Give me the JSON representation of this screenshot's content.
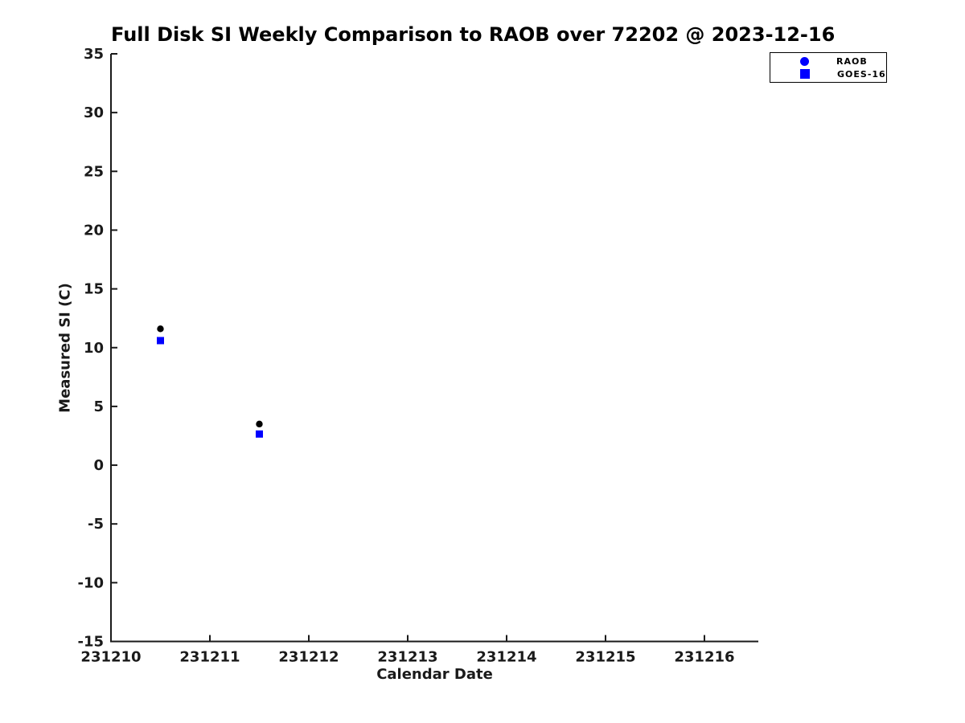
{
  "chart_data": {
    "type": "scatter",
    "title": "Full Disk SI Weekly Comparison to RAOB over 72202 @ 2023-12-16",
    "xlabel": "Calendar Date",
    "ylabel": "Measured SI (C)",
    "xlim": [
      231210,
      231216.545
    ],
    "ylim": [
      -15,
      35
    ],
    "xticks": [
      231210,
      231211,
      231212,
      231213,
      231214,
      231215,
      231216
    ],
    "yticks": [
      35,
      30,
      25,
      20,
      15,
      10,
      5,
      0,
      -5,
      -10,
      -15
    ],
    "grid": false,
    "axis_color": "#1a1a1a",
    "legend": {
      "position": "outside-top-right",
      "border_color": "#000000",
      "background": "#ffffff"
    },
    "series": [
      {
        "name": "RAOB",
        "marker": "circle",
        "color": "#000000",
        "legend_color": "#0000ff",
        "points": [
          {
            "x": 231210.5,
            "y": 11.6
          },
          {
            "x": 231211.5,
            "y": 3.5
          }
        ]
      },
      {
        "name": "GOES-16",
        "marker": "square",
        "color": "#0000ff",
        "legend_color": "#0000ff",
        "points": [
          {
            "x": 231210.5,
            "y": 10.6
          },
          {
            "x": 231211.5,
            "y": 2.65
          }
        ]
      }
    ]
  }
}
